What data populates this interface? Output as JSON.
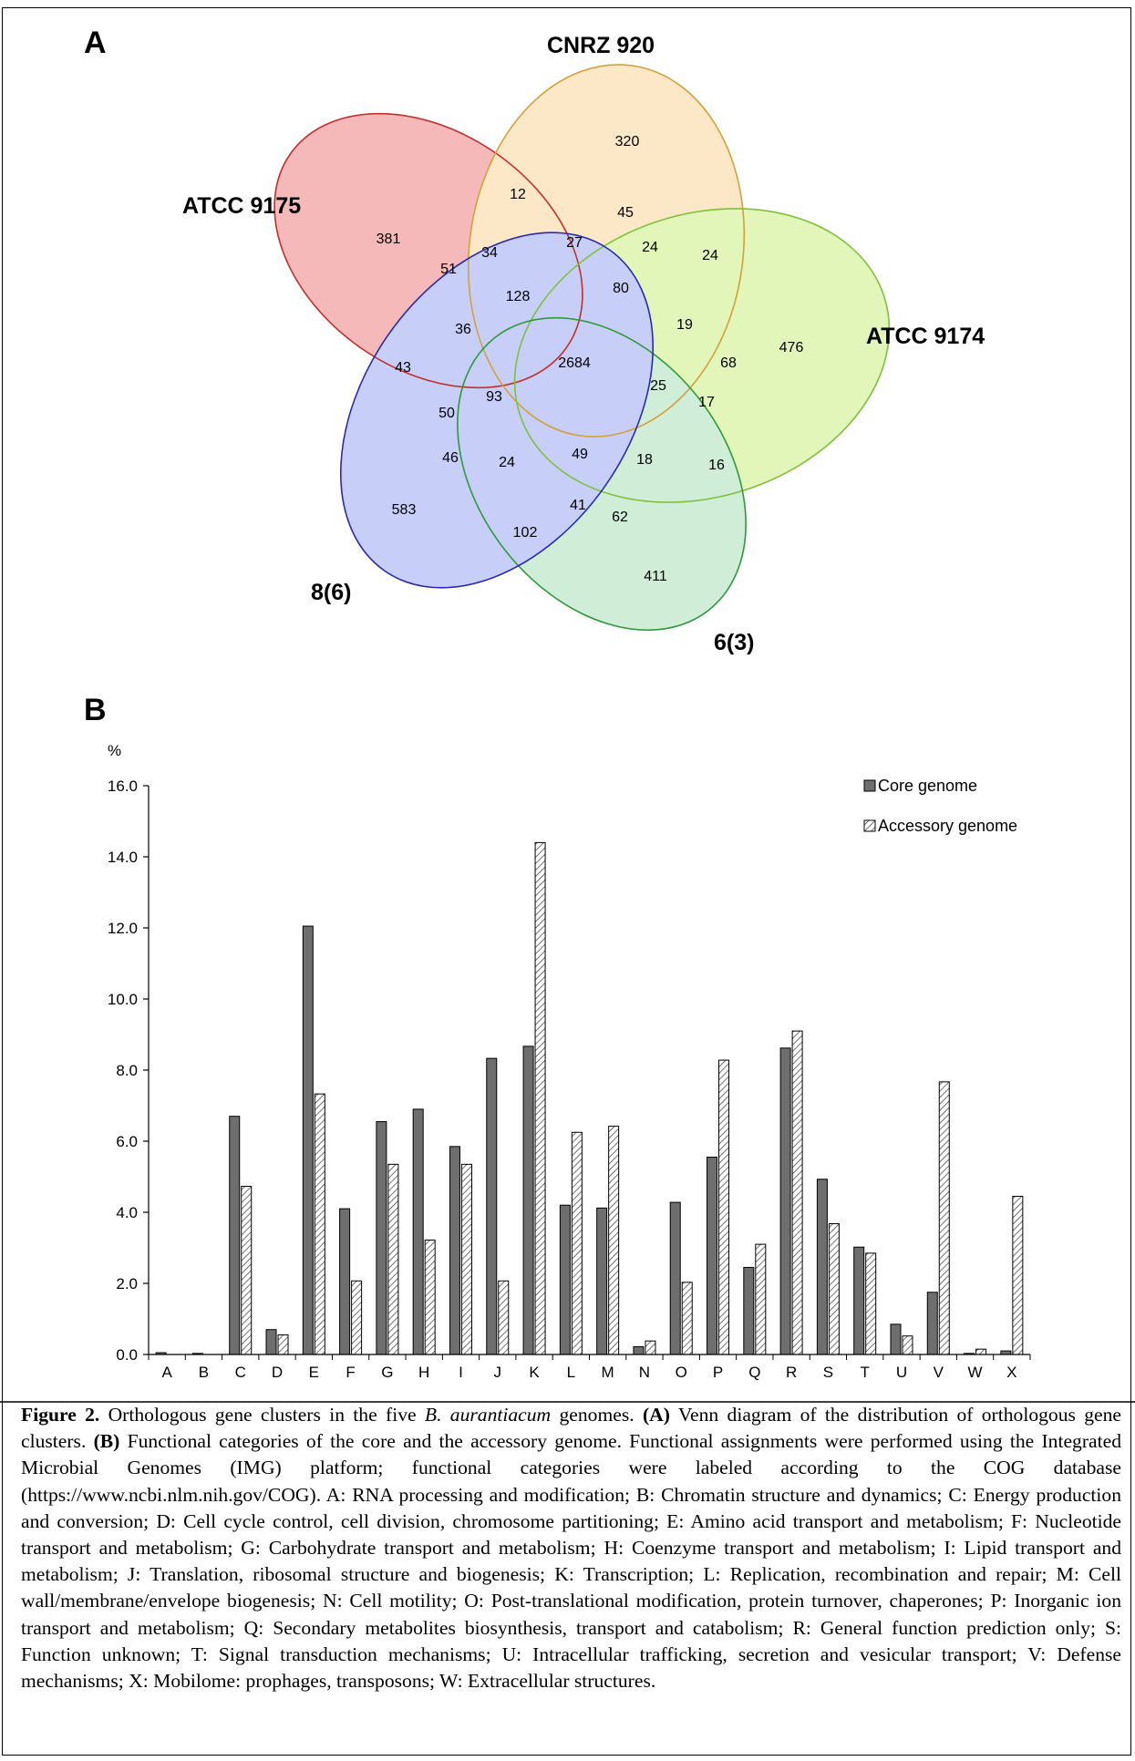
{
  "panel_a": {
    "letter": "A",
    "sets": [
      {
        "name": "ATCC 9175",
        "color": "#f08080",
        "stroke": "#c0302a"
      },
      {
        "name": "CNRZ 920",
        "color": "#fbd59a",
        "stroke": "#d4a03a"
      },
      {
        "name": "ATCC 9174",
        "color": "#ccf080",
        "stroke": "#7ec23a"
      },
      {
        "name": "6(3)",
        "color": "#a8e0b8",
        "stroke": "#2e9a3a"
      },
      {
        "name": "8(6)",
        "color": "#9aa8f5",
        "stroke": "#2a2ab0"
      }
    ],
    "numbers": [
      "320",
      "12",
      "45",
      "24",
      "24",
      "381",
      "51",
      "34",
      "27",
      "80",
      "128",
      "36",
      "19",
      "476",
      "43",
      "2684",
      "68",
      "25",
      "93",
      "17",
      "50",
      "46",
      "24",
      "49",
      "18",
      "16",
      "583",
      "41",
      "62",
      "102",
      "411"
    ]
  },
  "panel_b": {
    "letter": "B",
    "legend_core": "Core genome",
    "legend_accessory": "Accessory genome"
  },
  "chart_data": {
    "type": "bar",
    "ylabel": "%",
    "ylim": [
      0,
      16
    ],
    "yticks": [
      "0.0",
      "2.0",
      "4.0",
      "6.0",
      "8.0",
      "10.0",
      "12.0",
      "14.0",
      "16.0"
    ],
    "categories": [
      "A",
      "B",
      "C",
      "D",
      "E",
      "F",
      "G",
      "H",
      "I",
      "J",
      "K",
      "L",
      "M",
      "N",
      "O",
      "P",
      "Q",
      "R",
      "S",
      "T",
      "U",
      "V",
      "W",
      "X"
    ],
    "series": [
      {
        "name": "Core genome",
        "color": "#6e6e6e",
        "values": [
          0.05,
          0.03,
          6.7,
          0.7,
          12.05,
          4.1,
          6.55,
          6.9,
          5.85,
          8.33,
          8.67,
          4.2,
          4.12,
          0.22,
          4.28,
          5.55,
          2.45,
          8.62,
          4.93,
          3.02,
          0.85,
          1.75,
          0.03,
          0.1
        ]
      },
      {
        "name": "Accessory genome",
        "color": "hatched",
        "values": [
          0.0,
          0.0,
          4.73,
          0.55,
          7.33,
          2.07,
          5.35,
          3.22,
          5.35,
          2.07,
          14.4,
          6.25,
          6.42,
          0.38,
          2.03,
          8.28,
          3.1,
          9.1,
          3.68,
          2.85,
          0.52,
          7.67,
          0.15,
          4.45
        ]
      }
    ]
  },
  "caption": {
    "figure_label": "Figure 2.",
    "s1": " Orthologous gene clusters in the five ",
    "species": "B. aurantiacum",
    "s2": " genomes. ",
    "a_label": "(A)",
    "s3": " Venn diagram of the distribution of orthologous gene clusters. ",
    "b_label": "(B)",
    "s4": " Functional categories of the core and the accessory genome. Functional assignments were performed using the Integrated Microbial Genomes (IMG) platform; functional categories were labeled according to the COG database (https://www.ncbi.nlm.nih.gov/COG). A: RNA processing and modification; B: Chromatin structure and dynamics; C: Energy production and conversion; D: Cell cycle control, cell division, chromosome partitioning; E: Amino acid transport and metabolism; F: Nucleotide transport and metabolism; G: Carbohydrate transport and metabolism; H: Coenzyme transport and metabolism; I: Lipid transport and metabolism; J: Translation, ribosomal structure and biogenesis; K: Transcription; L: Replication, recombination and repair; M: Cell wall/membrane/envelope biogenesis; N: Cell motility; O: Post-translational modification, protein turnover, chaperones; P: Inorganic ion transport and metabolism; Q: Secondary metabolites biosynthesis, transport and catabolism; R: General function prediction only; S: Function unknown; T: Signal transduction mechanisms; U: Intracellular trafficking, secretion and vesicular transport; V: Defense mechanisms; X: Mobilome: prophages, transposons; W: Extracellular structures."
  }
}
